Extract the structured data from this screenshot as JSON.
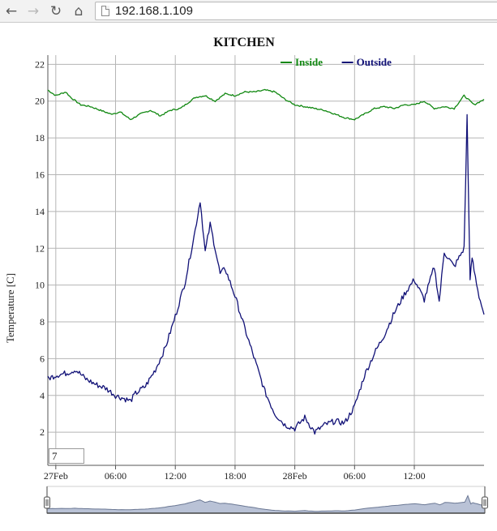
{
  "browser": {
    "url": "192.168.1.109",
    "back_icon": "back-arrow-icon",
    "forward_icon": "forward-arrow-icon",
    "reload_icon": "reload-icon",
    "home_icon": "home-icon"
  },
  "range_input": {
    "value": "7"
  },
  "chart_data": {
    "type": "line",
    "title": "KITCHEN",
    "xlabel": "",
    "ylabel": "Temperature [C]",
    "x_unit": "hours since 27Feb 00:00",
    "xlim": [
      -0.8,
      43.0
    ],
    "ylim": [
      0.2,
      22.5
    ],
    "yticks": [
      2,
      4,
      6,
      8,
      10,
      12,
      14,
      16,
      18,
      20,
      22
    ],
    "xticks": [
      {
        "h": 0,
        "label": "27Feb"
      },
      {
        "h": 6,
        "label": "06:00"
      },
      {
        "h": 12,
        "label": "12:00"
      },
      {
        "h": 18,
        "label": "18:00"
      },
      {
        "h": 24,
        "label": "28Feb"
      },
      {
        "h": 30,
        "label": "06:00"
      },
      {
        "h": 36,
        "label": "12:00"
      }
    ],
    "grid": true,
    "legend_position": "top-right",
    "series": [
      {
        "name": "Inside",
        "color": "#118811",
        "x": [
          -0.8,
          0,
          1,
          1.5,
          2.5,
          3.5,
          4.5,
          5.5,
          6.5,
          7.5,
          8.5,
          9.5,
          10.5,
          11.5,
          12.5,
          13,
          14,
          15,
          16,
          17,
          18,
          19,
          20,
          21,
          22,
          23,
          24,
          25,
          26,
          27,
          28,
          29,
          30,
          31,
          32,
          33,
          34,
          35,
          36,
          37,
          38,
          39,
          40,
          41,
          42,
          43
        ],
        "y": [
          20.6,
          20.3,
          20.5,
          20.2,
          19.8,
          19.7,
          19.5,
          19.3,
          19.4,
          19.0,
          19.3,
          19.5,
          19.2,
          19.5,
          19.6,
          19.8,
          20.2,
          20.3,
          20.0,
          20.4,
          20.3,
          20.5,
          20.5,
          20.6,
          20.5,
          20.1,
          19.8,
          19.7,
          19.6,
          19.5,
          19.3,
          19.1,
          19.0,
          19.3,
          19.6,
          19.7,
          19.6,
          19.8,
          19.8,
          20.0,
          19.6,
          19.7,
          19.6,
          20.3,
          19.8,
          20.1
        ]
      },
      {
        "name": "Outside",
        "color": "#111177",
        "x": [
          -0.8,
          0,
          1,
          2,
          3,
          4,
          5,
          6,
          7,
          7.5,
          8,
          9,
          10,
          11,
          12,
          13,
          14,
          14.5,
          15,
          15.5,
          16,
          16.5,
          17,
          18,
          19,
          20,
          21,
          22,
          23,
          24,
          25,
          26,
          27,
          28,
          29,
          30,
          31,
          32,
          33,
          34,
          35,
          36,
          37,
          38,
          38.5,
          39,
          40,
          41,
          41.3,
          41.6,
          41.8,
          42,
          42.5,
          43
        ],
        "y": [
          4.9,
          5.1,
          5.2,
          5.4,
          4.9,
          4.6,
          4.4,
          4.0,
          3.8,
          3.7,
          4.1,
          4.5,
          5.4,
          6.6,
          8.3,
          10.2,
          13.0,
          14.6,
          11.8,
          13.3,
          12.0,
          10.6,
          10.9,
          9.4,
          7.6,
          5.9,
          4.2,
          3.0,
          2.4,
          2.2,
          2.8,
          2.0,
          2.4,
          2.6,
          2.5,
          3.4,
          5.1,
          6.3,
          7.3,
          8.5,
          9.5,
          10.3,
          9.2,
          11.0,
          9.1,
          11.8,
          11.0,
          12.0,
          19.2,
          10.2,
          11.5,
          10.8,
          9.4,
          8.4
        ]
      }
    ]
  }
}
